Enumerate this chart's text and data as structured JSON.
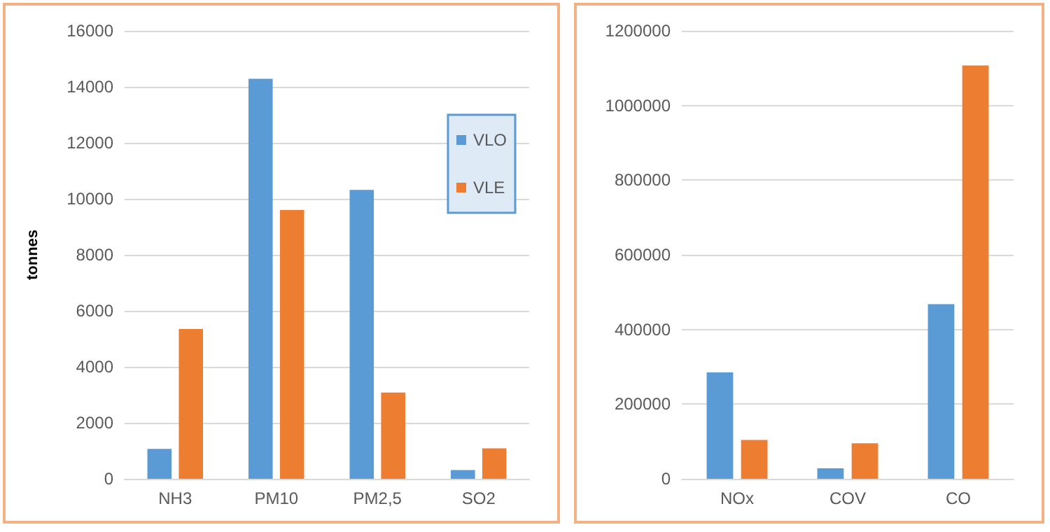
{
  "chart_data": [
    {
      "type": "bar",
      "ylabel": "tonnes",
      "categories": [
        "NH3",
        "PM10",
        "PM2,5",
        "SO2"
      ],
      "series": [
        {
          "name": "VLO",
          "color": "#5b9bd5",
          "values": [
            1070,
            14290,
            10320,
            310
          ]
        },
        {
          "name": "VLE",
          "color": "#ed7d31",
          "values": [
            5350,
            9600,
            3080,
            1090
          ]
        }
      ],
      "ylim": [
        0,
        16000
      ],
      "yticks": [
        0,
        2000,
        4000,
        6000,
        8000,
        10000,
        12000,
        14000,
        16000
      ],
      "grid": "y",
      "legend": "right"
    },
    {
      "type": "bar",
      "categories": [
        "NOx",
        "COV",
        "CO"
      ],
      "series": [
        {
          "color": "#5b9bd5",
          "values": [
            285000,
            28000,
            468000
          ]
        },
        {
          "color": "#ed7d31",
          "values": [
            104000,
            95000,
            1107000
          ]
        }
      ],
      "ylim": [
        0,
        1200000
      ],
      "yticks": [
        0,
        200000,
        400000,
        600000,
        800000,
        1000000,
        1200000
      ],
      "grid": "y"
    }
  ]
}
